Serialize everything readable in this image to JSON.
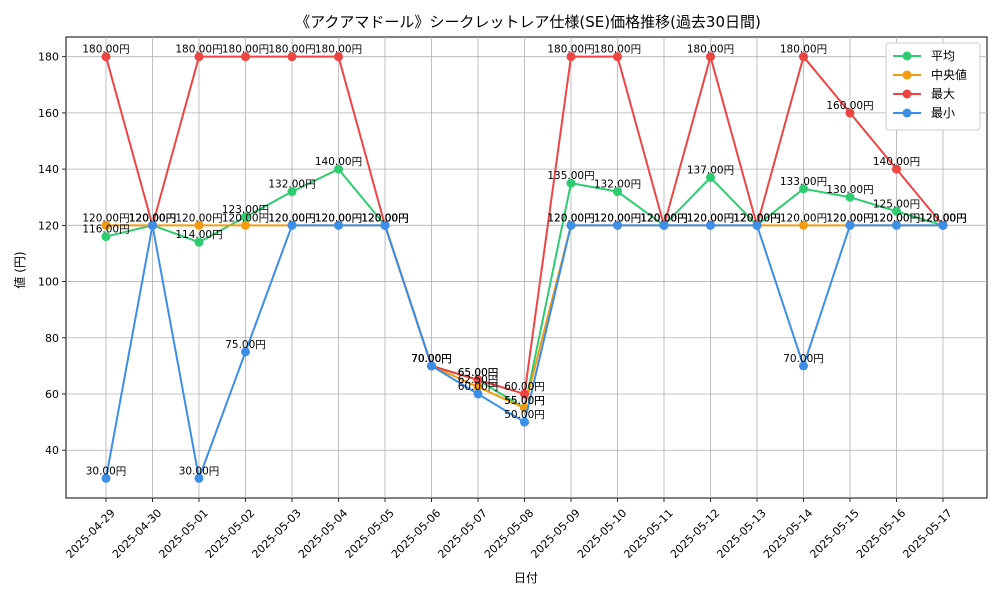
{
  "chart_data": {
    "type": "line",
    "title": "《アクアマドール》シークレットレア仕様(SE)価格推移(過去30日間)",
    "xlabel": "日付",
    "ylabel": "値 (円)",
    "categories": [
      "2025-04-29",
      "2025-04-30",
      "2025-05-01",
      "2025-05-02",
      "2025-05-03",
      "2025-05-04",
      "2025-05-05",
      "2025-05-06",
      "2025-05-07",
      "2025-05-08",
      "2025-05-09",
      "2025-05-10",
      "2025-05-11",
      "2025-05-12",
      "2025-05-13",
      "2025-05-14",
      "2025-05-15",
      "2025-05-16",
      "2025-05-17"
    ],
    "ylim": [
      23,
      187
    ],
    "yticks": [
      40,
      60,
      80,
      100,
      120,
      140,
      160,
      180
    ],
    "grid": true,
    "legend_position": "top-right",
    "label_suffix": "円",
    "series": [
      {
        "name": "平均",
        "color": "#2ecc71",
        "values": [
          116,
          120,
          114,
          123,
          132,
          140,
          120,
          70,
          65,
          55,
          135,
          132,
          120,
          137,
          120,
          133,
          130,
          125,
          120
        ]
      },
      {
        "name": "中央値",
        "color": "#f39c12",
        "values": [
          120,
          120,
          120,
          120,
          120,
          120,
          120,
          70,
          62.5,
          55,
          120,
          120,
          120,
          120,
          120,
          120,
          120,
          120,
          120
        ]
      },
      {
        "name": "最大",
        "color": "#ef4444",
        "values": [
          180,
          120,
          180,
          180,
          180,
          180,
          120,
          70,
          65,
          60,
          180,
          180,
          120,
          180,
          120,
          180,
          160,
          140,
          120
        ]
      },
      {
        "name": "最小",
        "color": "#3b8fe8",
        "values": [
          30,
          120,
          30,
          75,
          120,
          120,
          120,
          70,
          60,
          50,
          120,
          120,
          120,
          120,
          120,
          70,
          120,
          120,
          120
        ]
      }
    ]
  }
}
